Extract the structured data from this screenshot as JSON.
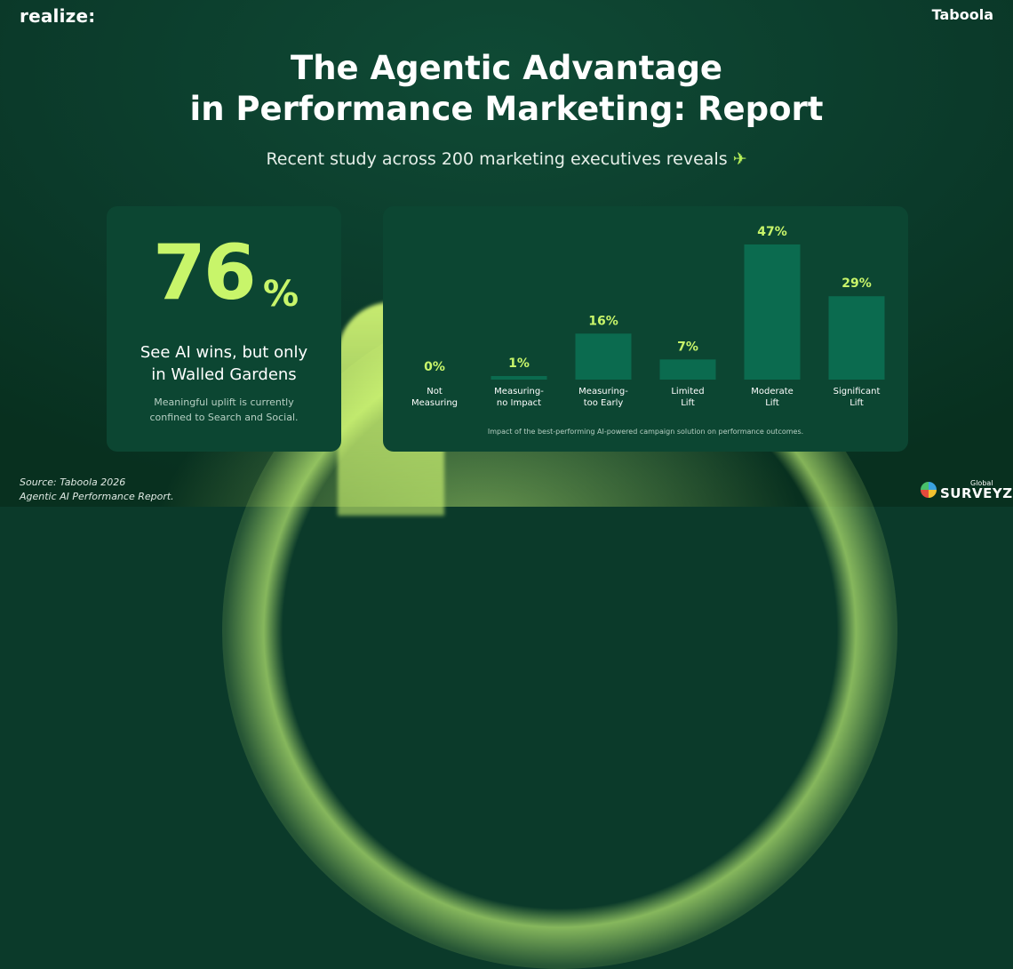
{
  "header": {
    "brand_left": "realize:",
    "brand_right": "Taboola",
    "title_line1": "The Agentic Advantage",
    "title_line2": "in Performance Marketing: Report",
    "subtitle": "Recent study across 200 marketing executives reveals",
    "subtitle_icon": "sparkle-icon"
  },
  "stat_card": {
    "value": "76",
    "unit": "%",
    "headline_line1": "See AI wins, but only",
    "headline_line2": "in Walled Gardens",
    "note_line1": "Meaningful uplift is currently",
    "note_line2": "confined to Search and Social."
  },
  "chart_data": {
    "type": "bar",
    "categories": [
      [
        "Not",
        "Measuring"
      ],
      [
        "Measuring-",
        "no Impact"
      ],
      [
        "Measuring-",
        "too Early"
      ],
      [
        "Limited",
        "Lift"
      ],
      [
        "Moderate",
        "Lift"
      ],
      [
        "Significant",
        "Lift"
      ]
    ],
    "values": [
      0,
      1,
      16,
      7,
      47,
      29
    ],
    "value_labels": [
      "0%",
      "1%",
      "16%",
      "7%",
      "47%",
      "29%"
    ],
    "ylim": [
      0,
      47
    ],
    "caption": "Impact of the best-performing AI-powered campaign solution on performance outcomes.",
    "colors": {
      "bar": "#0b6b4f",
      "label": "#c8f56a",
      "category": "#ffffff"
    }
  },
  "footer": {
    "source_line1": "Source: Taboola 2026",
    "source_line2": "Agentic AI Performance Report.",
    "logo_small": "Global",
    "logo_name": "SURVEYZ"
  }
}
